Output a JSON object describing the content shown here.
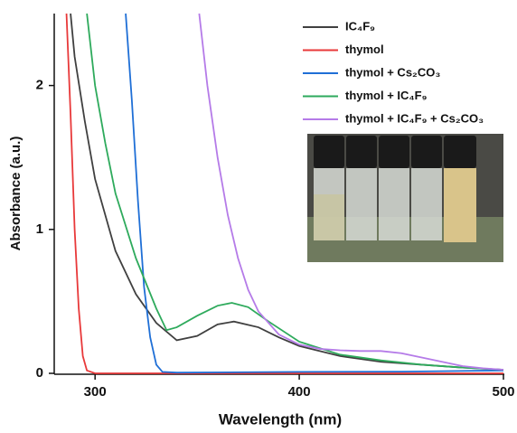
{
  "chart_data": {
    "type": "line",
    "x_label": "Wavelength (nm)",
    "y_label": "Absorbance (a.u.)",
    "xlim": [
      280,
      500
    ],
    "ylim": [
      0,
      2.5
    ],
    "xticks": [
      300,
      400,
      500
    ],
    "yticks": [
      0,
      1,
      2
    ],
    "grid": false,
    "legend": "upper right",
    "series": [
      {
        "name": "IC₄F₉",
        "color": "#404040",
        "x": [
          288,
          290,
          295,
          300,
          310,
          320,
          330,
          340,
          350,
          360,
          368,
          380,
          390,
          400,
          420,
          440,
          460,
          480,
          500
        ],
        "values": [
          2.5,
          2.2,
          1.75,
          1.35,
          0.85,
          0.55,
          0.35,
          0.23,
          0.26,
          0.34,
          0.36,
          0.32,
          0.25,
          0.19,
          0.12,
          0.08,
          0.06,
          0.04,
          0.025
        ]
      },
      {
        "name": "thymol",
        "color": "#e8393a",
        "x": [
          286,
          288,
          290,
          292,
          294,
          296,
          300,
          400,
          500
        ],
        "values": [
          2.5,
          1.8,
          1.0,
          0.45,
          0.12,
          0.02,
          0,
          0,
          0
        ]
      },
      {
        "name": "thymol + Cs₂CO₃",
        "color": "#1f6fd6",
        "x": [
          315,
          318,
          321,
          324,
          327,
          330,
          333,
          340,
          400,
          450,
          500
        ],
        "values": [
          2.5,
          1.9,
          1.2,
          0.6,
          0.25,
          0.06,
          0.01,
          0.005,
          0.01,
          0.012,
          0.02
        ]
      },
      {
        "name": "thymol + IC₄F₉",
        "color": "#2eaa5c",
        "x": [
          296,
          300,
          305,
          310,
          320,
          330,
          335,
          340,
          350,
          360,
          367,
          375,
          385,
          400,
          420,
          440,
          460,
          480,
          500
        ],
        "values": [
          2.5,
          2.0,
          1.6,
          1.25,
          0.8,
          0.45,
          0.3,
          0.32,
          0.4,
          0.47,
          0.49,
          0.46,
          0.36,
          0.22,
          0.13,
          0.09,
          0.06,
          0.04,
          0.025
        ]
      },
      {
        "name": "thymol + IC₄F₉ + Cs₂CO₃",
        "color": "#b57be8",
        "x": [
          351,
          355,
          360,
          365,
          370,
          375,
          380,
          390,
          400,
          410,
          420,
          430,
          440,
          450,
          460,
          470,
          480,
          490,
          500
        ],
        "values": [
          2.5,
          2.0,
          1.5,
          1.1,
          0.8,
          0.58,
          0.43,
          0.27,
          0.2,
          0.17,
          0.16,
          0.155,
          0.155,
          0.14,
          0.11,
          0.08,
          0.05,
          0.035,
          0.025
        ]
      }
    ]
  }
}
